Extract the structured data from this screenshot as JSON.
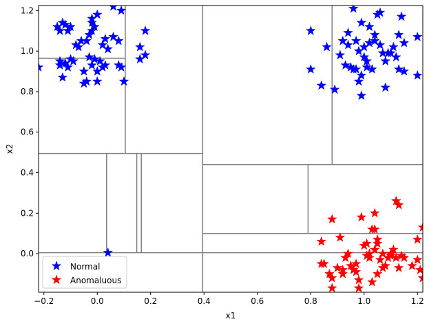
{
  "chart_data": {
    "type": "scatter",
    "title": "",
    "xlabel": "x1",
    "ylabel": "x2",
    "xlim": [
      -0.22,
      1.22
    ],
    "ylim": [
      -0.19,
      1.225
    ],
    "xticks": [
      -0.2,
      0.0,
      0.2,
      0.4,
      0.6,
      0.8,
      1.0,
      1.2
    ],
    "xtick_labels": [
      "−0.2",
      "0.0",
      "0.2",
      "0.4",
      "0.6",
      "0.8",
      "1.0",
      "1.2"
    ],
    "yticks": [
      0.0,
      0.2,
      0.4,
      0.6,
      0.8,
      1.0,
      1.2
    ],
    "ytick_labels": [
      "0.0",
      "0.2",
      "0.4",
      "0.6",
      "0.8",
      "1.0",
      "1.2"
    ],
    "grid": false,
    "legend_position": "lower-left",
    "colors": {
      "normal": "#0000ff",
      "anomalous": "#ff0000",
      "partition": "#808080"
    },
    "marker": "star",
    "series": [
      {
        "name": "Normal",
        "color": "#0000ff",
        "points": [
          [
            -0.22,
            0.92
          ],
          [
            -0.14,
            0.93
          ],
          [
            -0.14,
            0.95
          ],
          [
            -0.13,
            0.87
          ],
          [
            -0.12,
            0.94
          ],
          [
            -0.11,
            0.92
          ],
          [
            -0.1,
            0.96
          ],
          [
            -0.09,
            0.95
          ],
          [
            -0.08,
            1.03
          ],
          [
            -0.07,
            1.02
          ],
          [
            -0.06,
            1.05
          ],
          [
            -0.05,
            0.84
          ],
          [
            -0.05,
            0.9
          ],
          [
            -0.04,
            0.85
          ],
          [
            -0.03,
            0.97
          ],
          [
            -0.02,
            0.93
          ],
          [
            -0.01,
            0.96
          ],
          [
            0.0,
            0.9
          ],
          [
            0.0,
            0.85
          ],
          [
            0.01,
            0.95
          ],
          [
            0.02,
            0.92
          ],
          [
            0.03,
            0.93
          ],
          [
            -0.04,
            1.05
          ],
          [
            -0.03,
            1.08
          ],
          [
            -0.02,
            1.1
          ],
          [
            -0.01,
            1.12
          ],
          [
            0.0,
            1.18
          ],
          [
            0.02,
            1.03
          ],
          [
            0.03,
            1.06
          ],
          [
            0.06,
            1.07
          ],
          [
            0.08,
            0.93
          ],
          [
            0.08,
            1.05
          ],
          [
            0.09,
            0.92
          ],
          [
            0.1,
            0.85
          ],
          [
            0.06,
            1.22
          ],
          [
            0.09,
            1.2
          ],
          [
            -0.15,
            1.12
          ],
          [
            -0.14,
            1.1
          ],
          [
            -0.13,
            1.14
          ],
          [
            -0.12,
            1.13
          ],
          [
            -0.11,
            1.1
          ],
          [
            -0.1,
            1.12
          ],
          [
            -0.02,
            1.14
          ],
          [
            -0.02,
            1.16
          ],
          [
            0.04,
            1.01
          ],
          [
            0.16,
            0.96
          ],
          [
            0.16,
            1.02
          ],
          [
            0.18,
            0.98
          ],
          [
            0.18,
            1.1
          ],
          [
            0.04,
            0.005
          ],
          [
            0.8,
            1.1
          ],
          [
            0.8,
            0.91
          ],
          [
            0.84,
            0.83
          ],
          [
            0.86,
            1.02
          ],
          [
            0.89,
            0.81
          ],
          [
            0.91,
            0.98
          ],
          [
            0.92,
            1.05
          ],
          [
            0.93,
            0.93
          ],
          [
            0.94,
            1.09
          ],
          [
            0.94,
            1.03
          ],
          [
            0.95,
            0.92
          ],
          [
            0.96,
            1.21
          ],
          [
            0.96,
            0.91
          ],
          [
            0.97,
            1.05
          ],
          [
            0.97,
            0.91
          ],
          [
            0.98,
            1.0
          ],
          [
            0.98,
            0.85
          ],
          [
            0.99,
            1.14
          ],
          [
            0.99,
            0.88
          ],
          [
            0.99,
            0.78
          ],
          [
            1.0,
            1.02
          ],
          [
            1.0,
            0.97
          ],
          [
            1.01,
            0.95
          ],
          [
            1.01,
            0.92
          ],
          [
            1.02,
            1.04
          ],
          [
            1.02,
            1.12
          ],
          [
            1.03,
            0.91
          ],
          [
            1.04,
            1.08
          ],
          [
            1.04,
            1.05
          ],
          [
            1.05,
            1.18
          ],
          [
            1.06,
            1.03
          ],
          [
            1.06,
            1.19
          ],
          [
            1.07,
            0.99
          ],
          [
            1.08,
            0.82
          ],
          [
            1.08,
            0.95
          ],
          [
            1.09,
            0.99
          ],
          [
            1.1,
            0.99
          ],
          [
            1.11,
            1.02
          ],
          [
            1.12,
            0.97
          ],
          [
            1.13,
            0.91
          ],
          [
            1.13,
            1.08
          ],
          [
            1.14,
            1.17
          ],
          [
            1.15,
            0.9
          ],
          [
            1.15,
            1.04
          ],
          [
            1.2,
            0.88
          ],
          [
            1.2,
            1.07
          ]
        ]
      },
      {
        "name": "Anomaluous",
        "color": "#ff0000",
        "points": [
          [
            0.84,
            -0.05
          ],
          [
            0.84,
            0.06
          ],
          [
            0.85,
            -0.05
          ],
          [
            0.87,
            -0.1
          ],
          [
            0.88,
            0.17
          ],
          [
            0.88,
            -0.12
          ],
          [
            0.88,
            -0.17
          ],
          [
            0.9,
            -0.07
          ],
          [
            0.91,
            0.08
          ],
          [
            0.92,
            -0.08
          ],
          [
            0.92,
            -0.1
          ],
          [
            0.93,
            -0.02
          ],
          [
            0.94,
            0.0
          ],
          [
            0.95,
            -0.06
          ],
          [
            0.96,
            -0.08
          ],
          [
            0.97,
            -0.05
          ],
          [
            0.97,
            -0.09
          ],
          [
            0.98,
            -0.13
          ],
          [
            0.98,
            -0.17
          ],
          [
            0.99,
            0.18
          ],
          [
            1.0,
            0.04
          ],
          [
            1.01,
            0.05
          ],
          [
            1.01,
            -0.01
          ],
          [
            1.02,
            0.0
          ],
          [
            1.02,
            -0.02
          ],
          [
            1.03,
            0.12
          ],
          [
            1.03,
            -0.14
          ],
          [
            1.04,
            0.12
          ],
          [
            1.04,
            0.2
          ],
          [
            1.04,
            0.02
          ],
          [
            1.05,
            0.07
          ],
          [
            1.05,
            0.05
          ],
          [
            1.05,
            -0.1
          ],
          [
            1.06,
            -0.03
          ],
          [
            1.07,
            0.0
          ],
          [
            1.07,
            -0.07
          ],
          [
            1.08,
            -0.06
          ],
          [
            1.09,
            -0.02
          ],
          [
            1.1,
            0.0
          ],
          [
            1.1,
            -0.01
          ],
          [
            1.11,
            0.02
          ],
          [
            1.12,
            -0.02
          ],
          [
            1.12,
            0.26
          ],
          [
            1.13,
            0.24
          ],
          [
            1.13,
            -0.07
          ],
          [
            1.14,
            -0.01
          ],
          [
            1.15,
            -0.02
          ],
          [
            1.18,
            -0.06
          ],
          [
            1.2,
            -0.03
          ],
          [
            1.2,
            0.07
          ],
          [
            1.21,
            -0.08
          ],
          [
            1.22,
            -0.12
          ],
          [
            1.22,
            0.13
          ]
        ]
      }
    ],
    "partition_segments": [
      [
        -0.22,
        0.005,
        1.22,
        0.005
      ],
      [
        -0.22,
        0.495,
        0.395,
        0.495
      ],
      [
        0.395,
        -0.19,
        0.395,
        1.225
      ],
      [
        0.105,
        0.495,
        0.105,
        1.225
      ],
      [
        -0.22,
        0.965,
        0.105,
        0.965
      ],
      [
        0.035,
        0.005,
        0.035,
        0.495
      ],
      [
        0.148,
        0.005,
        0.148,
        0.495
      ],
      [
        0.165,
        0.005,
        0.165,
        0.495
      ],
      [
        0.395,
        0.44,
        1.22,
        0.44
      ],
      [
        0.88,
        0.44,
        0.88,
        1.225
      ],
      [
        0.79,
        0.1,
        0.79,
        0.44
      ],
      [
        0.395,
        0.1,
        1.22,
        0.1
      ]
    ]
  }
}
